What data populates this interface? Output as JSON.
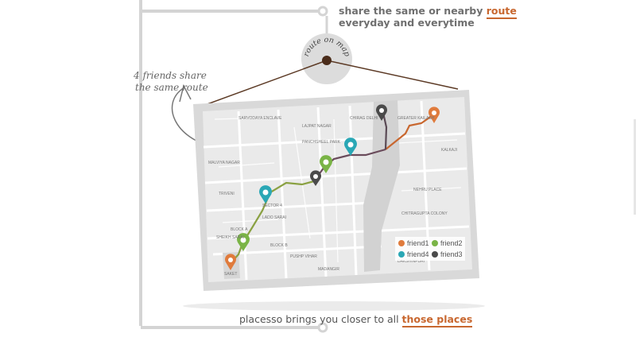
{
  "header": {
    "line1_prefix": "share the same or nearby ",
    "line1_link": "route",
    "line2": "everyday and everytime"
  },
  "badge": {
    "label": "route on map"
  },
  "annotation": {
    "line1": "4 friends share",
    "line2": "the same route"
  },
  "map": {
    "labels": [
      "Sarvodaya Enclave",
      "Malviya Nagar",
      "Saket",
      "Pushp Vihar",
      "Sheikh Sarai",
      "Panchsheel Park",
      "Chirag Delhi",
      "Greater Kailash",
      "Madangir",
      "Dakshinpuri",
      "Kalkaji",
      "Nehru Place",
      "Lajpat Nagar",
      "Lado Sarai",
      "Triveni",
      "Sector 4",
      "Block A",
      "Block B",
      "Chitragupta Colony"
    ],
    "legend": [
      {
        "label": "friend1",
        "color": "#e07b3c"
      },
      {
        "label": "friend2",
        "color": "#7ab446"
      },
      {
        "label": "friend4",
        "color": "#2aa7b5"
      },
      {
        "label": "friend3",
        "color": "#4a4a4a"
      }
    ]
  },
  "footer": {
    "prefix": "placesso brings you closer to all ",
    "link": "those places"
  },
  "colors": {
    "accent": "#c8672f",
    "frame": "#d8d8d8",
    "wire": "#5c3a25"
  }
}
